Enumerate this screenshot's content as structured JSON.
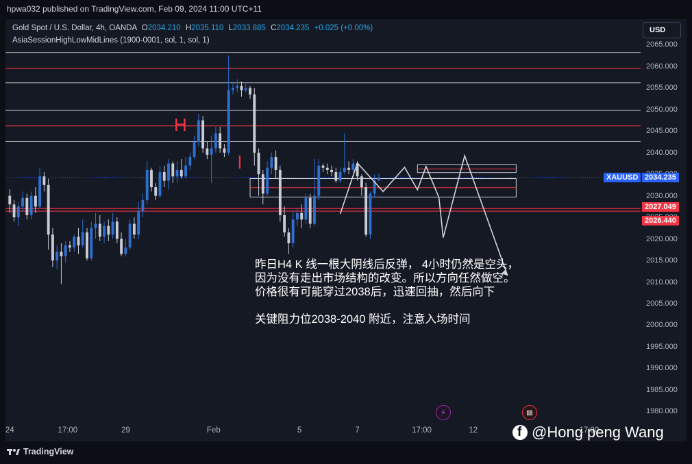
{
  "header": {
    "published": "hpwa032 published on TradingView.com, Feb 09, 2024 11:00 UTC+11"
  },
  "legend": {
    "symbol": "Gold Spot / U.S. Dollar, 4h, OANDA",
    "o_label": "O",
    "o": "2034.210",
    "h_label": "H",
    "h": "2035.110",
    "l_label": "L",
    "l": "2033.885",
    "c_label": "C",
    "c": "2034.235",
    "change": "+0.025 (+0.00%)",
    "indicator": "AsiaSessionHighLowMidLines (1900-0001, sol, 1, sol, 1)"
  },
  "currency_button": "USD",
  "tags": {
    "symbol": "XAUUSD",
    "last": "2034.235",
    "red1": "2027.049",
    "red2": "2026.440"
  },
  "annotation": {
    "line1": "昨日H4 K 线一根大阴线后反弹， 4小时仍然是空头，",
    "line2": "因为没有走出市场结构的改变。所以方向任然做空。",
    "line3": "价格很有可能穿过2038后，迅速回抽，然后向下",
    "line4": "关键阻力位2038-2040 附近，注意入场时间"
  },
  "labels": {
    "h_mark": "H",
    "l_mark": "l"
  },
  "watermark": "@Hong peng Wang",
  "footer_brand": "TradingView",
  "colors": {
    "up": "#2f6fd0",
    "down": "#c8ccd4",
    "red_line": "#f23645",
    "white_line": "#d1d4dc",
    "tag_blue": "#2962ff",
    "tag_red": "#f23645"
  },
  "chart_data": {
    "type": "candlestick",
    "title": "Gold Spot / U.S. Dollar, 4h, OANDA",
    "y_ticks": [
      "2065.000",
      "2060.000",
      "2055.000",
      "2050.000",
      "2045.000",
      "2040.000",
      "2035.000",
      "2030.000",
      "2025.000",
      "2020.000",
      "2015.000",
      "2010.000",
      "2005.000",
      "2000.000",
      "1995.000",
      "1990.000",
      "1985.000",
      "1980.000"
    ],
    "y_tick_values": [
      2065,
      2060,
      2055,
      2050,
      2045,
      2040,
      2035,
      2030,
      2025,
      2020,
      2015,
      2010,
      2005,
      2000,
      1995,
      1990,
      1985,
      1980
    ],
    "ylim": [
      1977.5,
      2066.5
    ],
    "x_ticks": [
      "24",
      "17:00",
      "29",
      "Feb",
      "5",
      "7",
      "17:00",
      "12",
      "1",
      "17:00"
    ],
    "x_tick_index": [
      0,
      13.5,
      27,
      47.5,
      67.5,
      81,
      96,
      108,
      120,
      135
    ],
    "x_range": [
      -1,
      147
    ],
    "horizontal_lines": [
      {
        "y": 2063.2,
        "color": "white"
      },
      {
        "y": 2059.6,
        "color": "red"
      },
      {
        "y": 2056.2,
        "color": "white"
      },
      {
        "y": 2049.8,
        "color": "white"
      },
      {
        "y": 2046.2,
        "color": "red"
      },
      {
        "y": 2042.6,
        "color": "white"
      },
      {
        "y": 2034.235,
        "color": "blue-dotted"
      },
      {
        "y": 2027.049,
        "color": "red"
      },
      {
        "y": 2026.44,
        "color": "red"
      }
    ],
    "rectangles": [
      {
        "x0": 56,
        "x1": 118,
        "y_top": 2034.0,
        "y_bottom": 2029.7,
        "mid": 2031.9
      },
      {
        "x0": 95,
        "x1": 118,
        "y_top": 2037.2,
        "y_bottom": 2035.4,
        "mid": 2036.2
      }
    ],
    "projection_path": [
      [
        77,
        2025.8
      ],
      [
        81,
        2037.6
      ],
      [
        87,
        2031.0
      ],
      [
        92,
        2036.6
      ],
      [
        95,
        2031.4
      ],
      [
        97,
        2036.8
      ],
      [
        100,
        2029.6
      ],
      [
        101,
        2020.3
      ],
      [
        106,
        2039.3
      ],
      [
        116,
        2011.5
      ]
    ],
    "candles": [
      [
        2030.0,
        2028.0,
        2031.5,
        2026.0
      ],
      [
        2028.0,
        2025.0,
        2029.0,
        2024.0
      ],
      [
        2025.0,
        2027.5,
        2028.5,
        2023.0
      ],
      [
        2027.5,
        2029.5,
        2031.0,
        2026.5
      ],
      [
        2029.5,
        2025.5,
        2030.5,
        2024.5
      ],
      [
        2025.5,
        2030.0,
        2031.0,
        2024.5
      ],
      [
        2030.0,
        2027.5,
        2032.0,
        2026.0
      ],
      [
        2027.5,
        2034.5,
        2036.5,
        2027.0
      ],
      [
        2034.5,
        2032.5,
        2035.5,
        2031.0
      ],
      [
        2032.5,
        2021.0,
        2034.0,
        2017.5
      ],
      [
        2021.0,
        2015.0,
        2022.5,
        2013.5
      ],
      [
        2015.0,
        2017.0,
        2018.5,
        2013.0
      ],
      [
        2017.0,
        2016.0,
        2019.0,
        2009.5
      ],
      [
        2016.0,
        2018.5,
        2019.5,
        2014.5
      ],
      [
        2018.5,
        2018.0,
        2019.5,
        2017.0
      ],
      [
        2018.0,
        2020.5,
        2021.0,
        2017.0
      ],
      [
        2020.5,
        2018.5,
        2022.5,
        2016.5
      ],
      [
        2018.5,
        2021.5,
        2024.5,
        2018.0
      ],
      [
        2021.5,
        2015.5,
        2022.5,
        2015.0
      ],
      [
        2015.5,
        2022.5,
        2024.0,
        2015.0
      ],
      [
        2022.5,
        2023.5,
        2026.0,
        2020.0
      ],
      [
        2023.5,
        2020.5,
        2025.5,
        2019.5
      ],
      [
        2020.5,
        2023.0,
        2024.0,
        2019.0
      ],
      [
        2023.0,
        2021.0,
        2024.5,
        2019.5
      ],
      [
        2021.0,
        2024.0,
        2026.0,
        2020.0
      ],
      [
        2024.0,
        2020.0,
        2025.0,
        2019.0
      ],
      [
        2020.0,
        2016.5,
        2021.5,
        2016.0
      ],
      [
        2016.5,
        2018.0,
        2020.0,
        2016.0
      ],
      [
        2018.0,
        2023.5,
        2024.5,
        2017.5
      ],
      [
        2023.5,
        2021.0,
        2025.0,
        2020.0
      ],
      [
        2021.0,
        2026.5,
        2028.5,
        2020.0
      ],
      [
        2026.5,
        2029.0,
        2030.5,
        2025.0
      ],
      [
        2029.0,
        2036.0,
        2038.0,
        2028.0
      ],
      [
        2036.0,
        2032.0,
        2036.5,
        2031.0
      ],
      [
        2032.0,
        2030.0,
        2033.0,
        2029.0
      ],
      [
        2030.0,
        2035.5,
        2037.0,
        2029.5
      ],
      [
        2035.5,
        2033.5,
        2037.0,
        2032.0
      ],
      [
        2033.5,
        2037.5,
        2038.5,
        2031.5
      ],
      [
        2037.5,
        2034.5,
        2038.0,
        2033.0
      ],
      [
        2034.5,
        2036.0,
        2038.0,
        2033.0
      ],
      [
        2036.0,
        2034.5,
        2038.5,
        2034.0
      ],
      [
        2034.5,
        2037.0,
        2039.0,
        2034.0
      ],
      [
        2037.0,
        2039.0,
        2040.0,
        2036.0
      ],
      [
        2039.0,
        2042.5,
        2044.0,
        2038.5
      ],
      [
        2042.5,
        2047.5,
        2049.0,
        2041.5
      ],
      [
        2047.5,
        2041.0,
        2048.5,
        2040.0
      ],
      [
        2041.0,
        2039.5,
        2042.5,
        2038.5
      ],
      [
        2039.5,
        2041.0,
        2044.0,
        2033.0
      ],
      [
        2041.0,
        2044.5,
        2046.0,
        2040.0
      ],
      [
        2044.5,
        2041.0,
        2046.0,
        2040.0
      ],
      [
        2041.0,
        2040.0,
        2042.0,
        2039.0
      ],
      [
        2040.0,
        2054.5,
        2062.5,
        2039.5
      ],
      [
        2054.5,
        2055.0,
        2056.5,
        2053.5
      ],
      [
        2055.0,
        2055.5,
        2057.0,
        2054.0
      ],
      [
        2055.5,
        2054.5,
        2056.5,
        2053.0
      ],
      [
        2054.5,
        2055.0,
        2056.0,
        2054.0
      ],
      [
        2055.0,
        2053.5,
        2055.5,
        2052.5
      ],
      [
        2053.5,
        2040.0,
        2055.0,
        2037.0
      ],
      [
        2040.0,
        2035.0,
        2041.0,
        2030.0
      ],
      [
        2035.0,
        2030.5,
        2036.0,
        2028.0
      ],
      [
        2030.5,
        2036.5,
        2038.0,
        2030.0
      ],
      [
        2036.5,
        2039.0,
        2040.0,
        2035.0
      ],
      [
        2039.0,
        2036.0,
        2040.5,
        2034.0
      ],
      [
        2036.0,
        2025.5,
        2037.0,
        2024.0
      ],
      [
        2025.5,
        2021.5,
        2027.5,
        2020.5
      ],
      [
        2021.5,
        2019.0,
        2022.5,
        2016.5
      ],
      [
        2019.0,
        2024.5,
        2026.5,
        2018.0
      ],
      [
        2024.5,
        2026.0,
        2027.0,
        2023.0
      ],
      [
        2026.0,
        2024.5,
        2028.0,
        2022.5
      ],
      [
        2024.5,
        2029.5,
        2030.5,
        2023.5
      ],
      [
        2029.5,
        2023.5,
        2030.5,
        2022.5
      ],
      [
        2023.5,
        2030.0,
        2038.5,
        2023.0
      ],
      [
        2030.0,
        2037.0,
        2038.5,
        2029.0
      ],
      [
        2037.0,
        2036.5,
        2037.5,
        2035.5
      ],
      [
        2036.5,
        2036.0,
        2037.5,
        2035.0
      ],
      [
        2036.0,
        2035.5,
        2037.0,
        2034.5
      ],
      [
        2035.5,
        2033.5,
        2036.5,
        2033.0
      ],
      [
        2033.5,
        2035.5,
        2036.5,
        2033.0
      ],
      [
        2035.5,
        2036.5,
        2044.5,
        2035.0
      ],
      [
        2036.5,
        2036.0,
        2038.0,
        2035.0
      ],
      [
        2036.0,
        2037.5,
        2038.5,
        2035.5
      ],
      [
        2037.5,
        2034.5,
        2038.0,
        2033.5
      ],
      [
        2034.5,
        2032.0,
        2035.0,
        2030.0
      ],
      [
        2032.0,
        2021.0,
        2033.0,
        2020.5
      ],
      [
        2021.0,
        2030.5,
        2031.0,
        2020.0
      ],
      [
        2030.5,
        2033.5,
        2035.0,
        2029.5
      ],
      [
        2033.5,
        2034.2,
        2035.1,
        2033.9
      ]
    ]
  }
}
